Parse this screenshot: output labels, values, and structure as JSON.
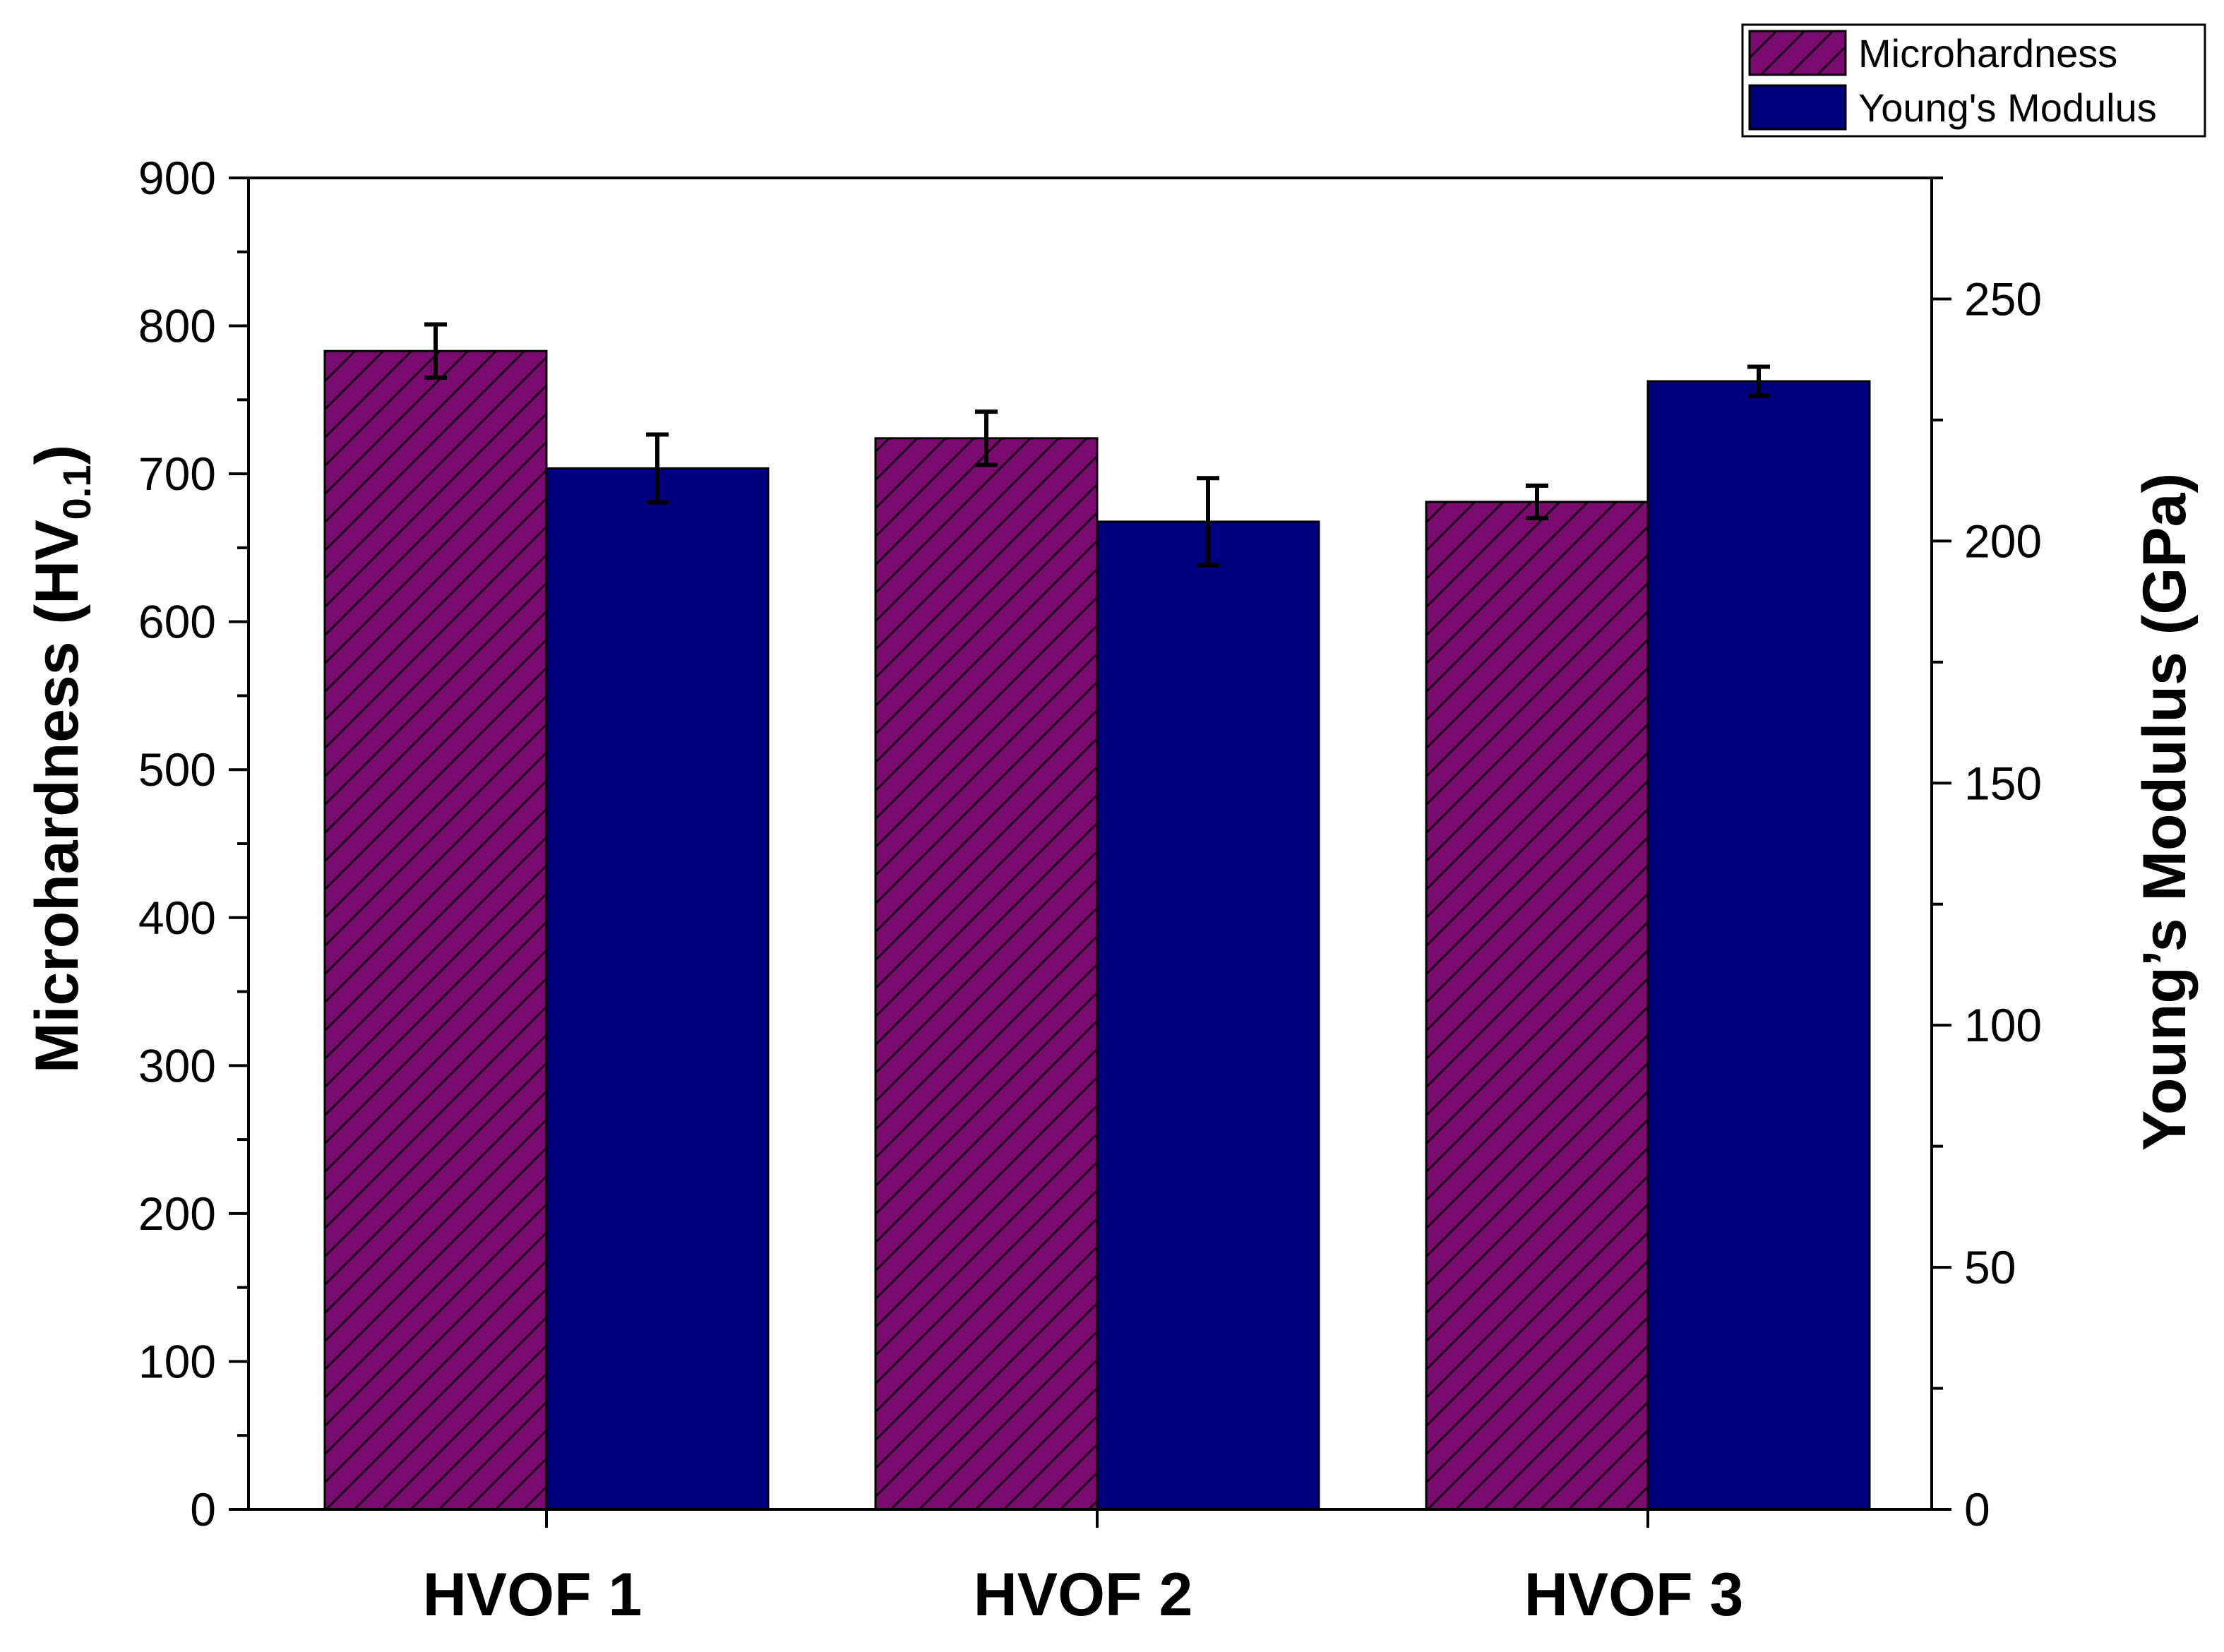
{
  "chart_data": {
    "type": "bar",
    "title": "",
    "categories": [
      "HVOF 1",
      "HVOF 2",
      "HVOF 3"
    ],
    "series": [
      {
        "name": "Microhardness",
        "axis": "left",
        "values": [
          783,
          724,
          681
        ],
        "errors": [
          18,
          18,
          11
        ],
        "color": "#7B0A6E",
        "pattern": "diagonal-hatch"
      },
      {
        "name": "Young's Modulus",
        "axis": "right",
        "values": [
          215,
          204,
          233
        ],
        "errors": [
          7,
          9,
          3
        ],
        "color": "#00007F",
        "pattern": "solid"
      }
    ],
    "ylabel_left_main": "Microhardness (HV",
    "ylabel_left_sub": "0.1",
    "ylabel_left_close": ")",
    "ylabel_right": "Young’s Modulus (GPa)",
    "ylim_left": [
      0,
      900
    ],
    "ylim_right": [
      0,
      275
    ],
    "yticks_left": [
      "0",
      "100",
      "200",
      "300",
      "400",
      "500",
      "600",
      "700",
      "800",
      "900"
    ],
    "yticks_right": [
      "0",
      "50",
      "100",
      "150",
      "200",
      "250"
    ],
    "legend_position": "top-right",
    "grid": false
  }
}
